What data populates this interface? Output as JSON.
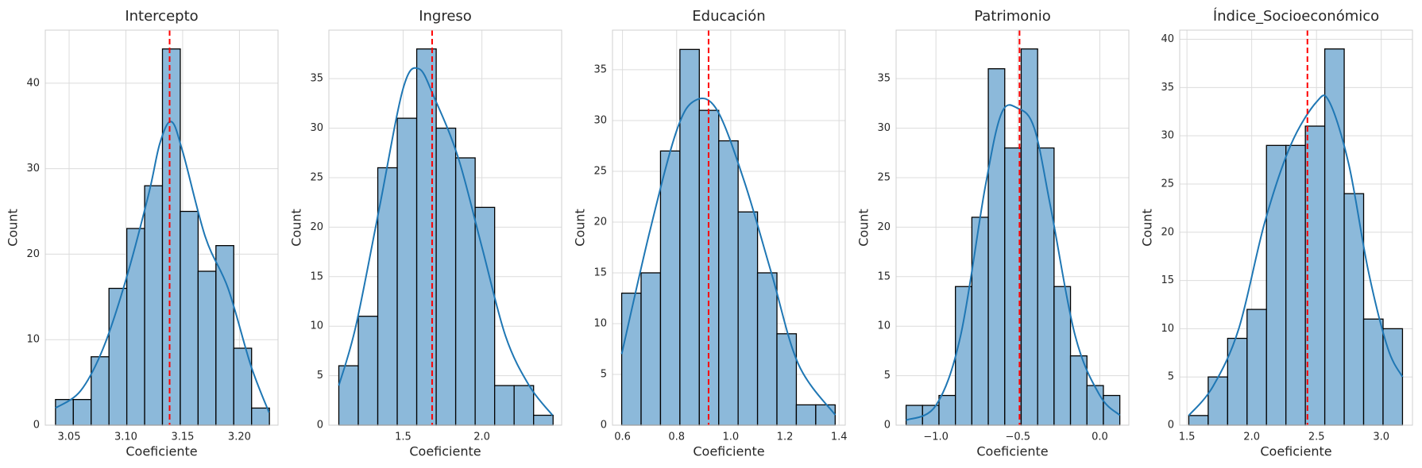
{
  "chart_data": [
    {
      "type": "histogram",
      "title": "Intercepto",
      "xlabel": "Coeficiente",
      "ylabel": "Count",
      "bins": [
        3.038,
        3.0537,
        3.0694,
        3.0851,
        3.1008,
        3.1165,
        3.1322,
        3.1479,
        3.1636,
        3.1793,
        3.195,
        3.2107,
        3.2264
      ],
      "counts": [
        3,
        3,
        8,
        16,
        23,
        28,
        44,
        25,
        18,
        21,
        9,
        2
      ],
      "color": "#8cb9da",
      "edgecolor": "#000000",
      "kde": {
        "x": [
          3.038,
          3.06,
          3.08,
          3.1,
          3.12,
          3.13,
          3.14,
          3.15,
          3.17,
          3.19,
          3.21,
          3.226
        ],
        "y": [
          2,
          4,
          9,
          17,
          27,
          33,
          35.5,
          32,
          22,
          16,
          7,
          1.5
        ],
        "color": "#1f77b4"
      },
      "mean_line": {
        "value": 3.1385,
        "color": "#ff0000"
      },
      "xlim": [
        3.029,
        3.234
      ],
      "ylim": [
        0,
        46.2
      ],
      "xticks": [
        3.05,
        {
          "value": 3.1,
          "label": "3.10"
        },
        3.15,
        {
          "value": 3.2,
          "label": "3.20"
        }
      ],
      "yticks": [
        0,
        10,
        20,
        30,
        40
      ],
      "grid": true
    },
    {
      "type": "histogram",
      "title": "Ingreso",
      "xlabel": "Coeficiente",
      "ylabel": "Count",
      "bins": [
        1.092,
        1.2156,
        1.3392,
        1.4628,
        1.5864,
        1.71,
        1.8336,
        1.9572,
        2.0808,
        2.2044,
        2.328,
        2.4516
      ],
      "counts": [
        6,
        11,
        26,
        31,
        38,
        30,
        27,
        22,
        4,
        4,
        1
      ],
      "color": "#8cb9da",
      "edgecolor": "#000000",
      "kde": {
        "x": [
          1.092,
          1.2,
          1.35,
          1.5,
          1.6,
          1.7,
          1.85,
          2.0,
          2.15,
          2.3,
          2.448
        ],
        "y": [
          4,
          10,
          22,
          34,
          36,
          33,
          27,
          18,
          9,
          4,
          1
        ],
        "color": "#1f77b4"
      },
      "mean_line": {
        "value": 1.684,
        "color": "#ff0000"
      },
      "xlim": [
        1.029,
        2.506
      ],
      "ylim": [
        0,
        39.9
      ],
      "xticks": [
        1.5,
        {
          "value": 2,
          "label": "2.0"
        }
      ],
      "yticks": [
        0,
        5,
        10,
        15,
        20,
        25,
        30,
        35
      ],
      "grid": true
    },
    {
      "type": "histogram",
      "title": "Educación",
      "xlabel": "Coeficiente",
      "ylabel": "Count",
      "bins": [
        0.597,
        0.6687,
        0.7404,
        0.8121,
        0.8838,
        0.9555,
        1.0272,
        1.0989,
        1.1706,
        1.2423,
        1.314,
        1.3857
      ],
      "counts": [
        13,
        15,
        27,
        37,
        31,
        28,
        21,
        15,
        9,
        2,
        2
      ],
      "color": "#8cb9da",
      "edgecolor": "#000000",
      "kde": {
        "x": [
          0.597,
          0.7,
          0.8,
          0.87,
          0.95,
          1.05,
          1.15,
          1.25,
          1.386
        ],
        "y": [
          7,
          19,
          29,
          32,
          31,
          24,
          15,
          6,
          1
        ],
        "color": "#1f77b4"
      },
      "mean_line": {
        "value": 0.918,
        "color": "#ff0000"
      },
      "xlim": [
        0.563,
        1.423
      ],
      "ylim": [
        0,
        38.9
      ],
      "xticks": [
        0.6,
        0.8,
        {
          "value": 1,
          "label": "1.0"
        },
        1.2,
        1.4
      ],
      "yticks": [
        0,
        5,
        10,
        15,
        20,
        25,
        30,
        35
      ],
      "grid": true
    },
    {
      "type": "histogram",
      "title": "Patrimonio",
      "xlabel": "Coeficiente",
      "ylabel": "Count",
      "bins": [
        -1.182,
        -1.0817,
        -0.9814,
        -0.8811,
        -0.7808,
        -0.6805,
        -0.5802,
        -0.4799,
        -0.3796,
        -0.2793,
        -0.179,
        -0.0787,
        0.0216,
        0.1219
      ],
      "counts": [
        2,
        2,
        3,
        14,
        21,
        36,
        28,
        38,
        28,
        14,
        7,
        4,
        3
      ],
      "color": "#8cb9da",
      "edgecolor": "#000000",
      "kde": {
        "x": [
          -1.182,
          -1.0,
          -0.85,
          -0.7,
          -0.6,
          -0.5,
          -0.4,
          -0.3,
          -0.15,
          0,
          0.122
        ],
        "y": [
          0.5,
          2,
          9,
          24,
          31.5,
          32,
          30,
          22,
          9,
          3,
          1
        ],
        "color": "#1f77b4"
      },
      "mean_line": {
        "value": -0.49,
        "color": "#ff0000"
      },
      "xlim": [
        -1.243,
        0.177
      ],
      "ylim": [
        0,
        39.9
      ],
      "xticks": [
        {
          "value": -1,
          "label": "−1.0"
        },
        {
          "value": -0.5,
          "label": "−0.5"
        },
        {
          "value": 0,
          "label": "0.0"
        }
      ],
      "yticks": [
        0,
        5,
        10,
        15,
        20,
        25,
        30,
        35
      ],
      "grid": true
    },
    {
      "type": "histogram",
      "title": "Índice_Socioeconómico",
      "xlabel": "Coeficiente",
      "ylabel": "Count",
      "bins": [
        1.514,
        1.664,
        1.814,
        1.964,
        2.114,
        2.264,
        2.414,
        2.564,
        2.714,
        2.864,
        3.014,
        3.164
      ],
      "counts": [
        1,
        5,
        9,
        12,
        29,
        29,
        31,
        39,
        24,
        11,
        10
      ],
      "color": "#8cb9da",
      "edgecolor": "#000000",
      "kde": {
        "x": [
          1.514,
          1.7,
          1.9,
          2.1,
          2.3,
          2.5,
          2.6,
          2.75,
          2.9,
          3.05,
          3.164
        ],
        "y": [
          1,
          4,
          10,
          21,
          29,
          33.5,
          33.5,
          27,
          16,
          8,
          5
        ],
        "color": "#1f77b4"
      },
      "mean_line": {
        "value": 2.43,
        "color": "#ff0000"
      },
      "xlim": [
        1.444,
        3.241
      ],
      "ylim": [
        0,
        40.95
      ],
      "xticks": [
        1.5,
        {
          "value": 2,
          "label": "2.0"
        },
        2.5,
        {
          "value": 3,
          "label": "3.0"
        }
      ],
      "yticks": [
        0,
        5,
        10,
        15,
        20,
        25,
        30,
        35,
        40
      ],
      "grid": true
    }
  ]
}
